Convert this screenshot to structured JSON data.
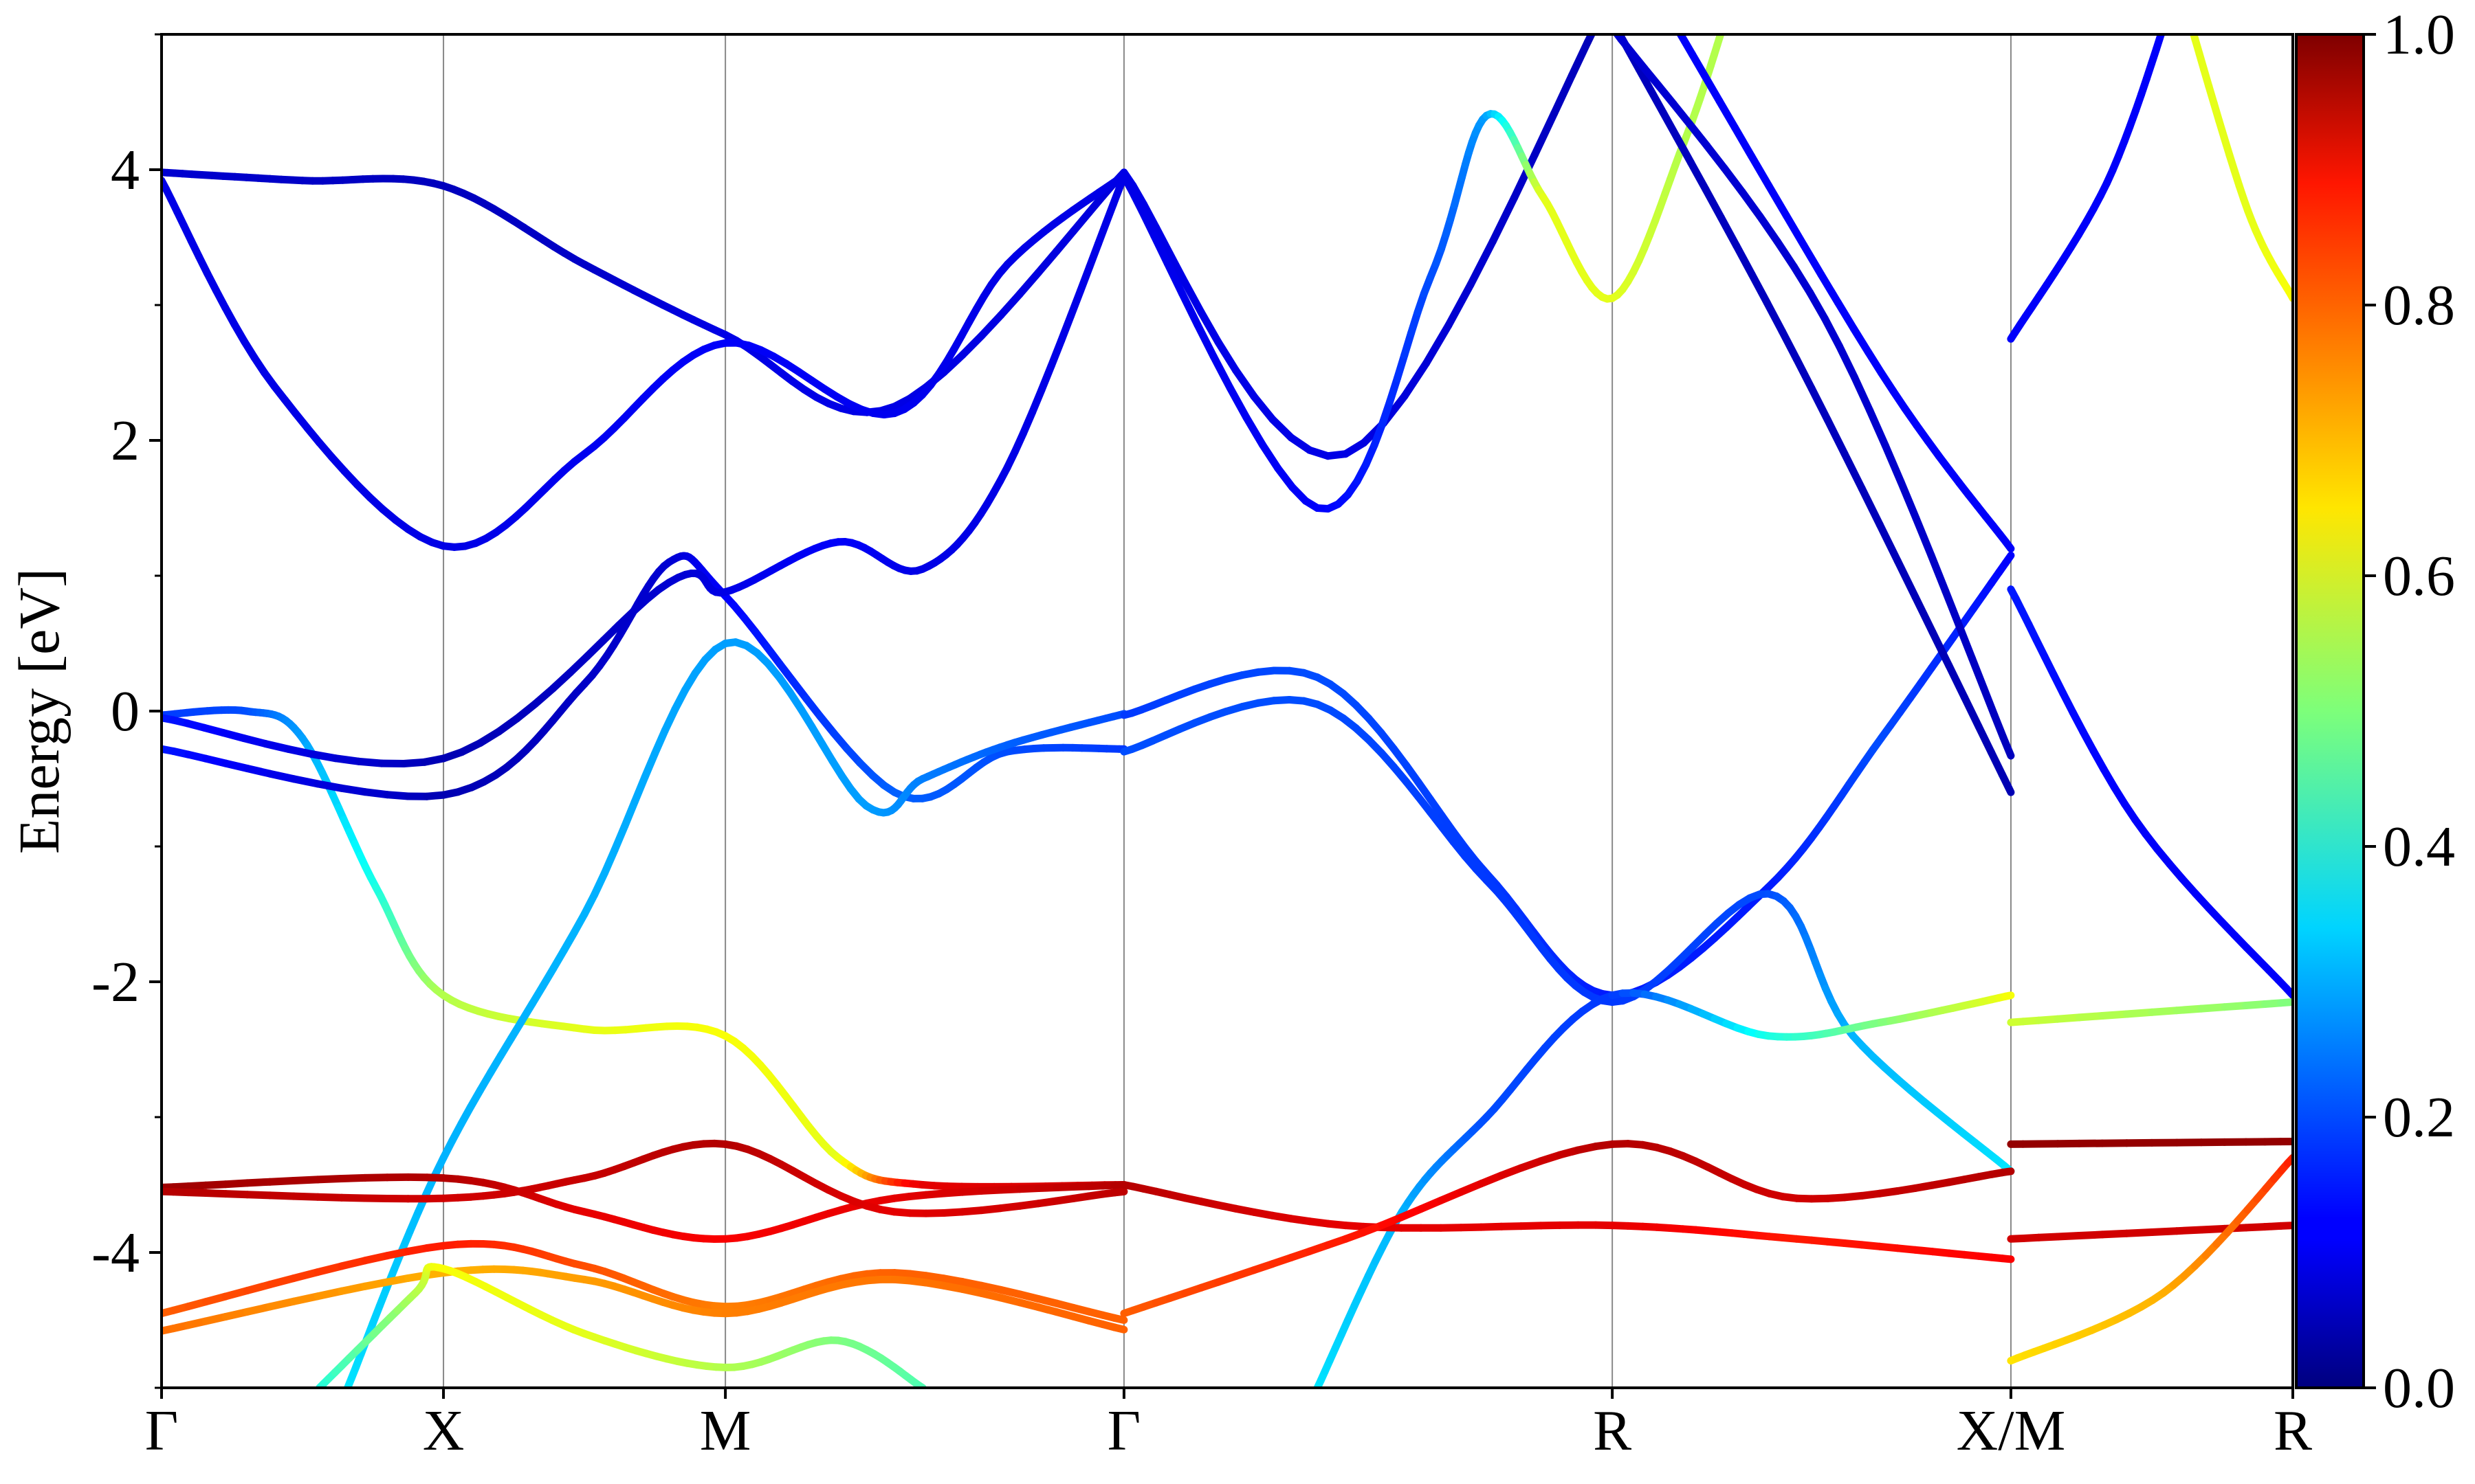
{
  "chart_data": {
    "type": "line",
    "title": "",
    "xlabel": "",
    "ylabel": "Energy [eV]",
    "ylim": [
      -5,
      5
    ],
    "yticks": [
      "-4",
      "-2",
      "0",
      "2",
      "4"
    ],
    "ytick_values": [
      -4,
      -2,
      0,
      2,
      4
    ],
    "kpath": {
      "labels": [
        "Γ",
        "X",
        "M",
        "Γ",
        "R",
        "X/M",
        "R"
      ],
      "positions": [
        0,
        0.5,
        1.0,
        1.707,
        2.573,
        3.28,
        3.78
      ]
    },
    "grid": "vertical lines at high-symmetry points",
    "colormap": "jet",
    "colorbar": {
      "min": 0.0,
      "max": 1.0,
      "ticks": [
        "0.0",
        "0.2",
        "0.4",
        "0.6",
        "0.8",
        "1.0"
      ],
      "tick_values": [
        0.0,
        0.2,
        0.4,
        0.6,
        0.8,
        1.0
      ],
      "placement": "right"
    },
    "series": [
      {
        "points": [
          [
            0,
            3.98,
            0.08
          ],
          [
            0.25,
            3.92,
            0.07
          ],
          [
            0.5,
            3.88,
            0.06
          ],
          [
            0.75,
            3.3,
            0.07
          ],
          [
            1.0,
            2.78,
            0.1
          ],
          [
            1.3,
            2.25,
            0.1
          ],
          [
            1.707,
            3.98,
            0.09
          ]
        ]
      },
      {
        "points": [
          [
            0,
            3.92,
            0.1
          ],
          [
            0.2,
            2.4,
            0.1
          ],
          [
            0.5,
            1.22,
            0.1
          ],
          [
            0.75,
            1.9,
            0.11
          ],
          [
            1.0,
            2.72,
            0.12
          ],
          [
            1.3,
            2.2,
            0.11
          ],
          [
            1.5,
            3.3,
            0.1
          ],
          [
            1.707,
            3.96,
            0.1
          ]
        ]
      },
      {
        "points": [
          [
            0,
            -0.03,
            0.18
          ],
          [
            0.15,
            0.0,
            0.2
          ],
          [
            0.25,
            -0.2,
            0.28
          ],
          [
            0.38,
            -1.3,
            0.4
          ],
          [
            0.5,
            -2.1,
            0.55
          ],
          [
            0.75,
            -2.35,
            0.6
          ],
          [
            1.0,
            -2.4,
            0.62
          ],
          [
            1.2,
            -3.3,
            0.6
          ],
          [
            1.35,
            -3.5,
            0.9
          ],
          [
            1.707,
            -3.5,
            0.92
          ]
        ]
      },
      {
        "points": [
          [
            0,
            -0.28,
            0.15
          ],
          [
            0.5,
            -0.62,
            0.05
          ],
          [
            0.75,
            0.2,
            0.07
          ],
          [
            0.9,
            1.1,
            0.08
          ],
          [
            1.0,
            0.85,
            0.12
          ],
          [
            1.3,
            -0.6,
            0.22
          ],
          [
            1.5,
            -0.3,
            0.2
          ],
          [
            1.707,
            -0.28,
            0.18
          ]
        ]
      },
      {
        "points": [
          [
            0,
            -0.05,
            0.15
          ],
          [
            0.5,
            -0.35,
            0.05
          ],
          [
            0.9,
            0.95,
            0.08
          ],
          [
            1.0,
            0.88,
            0.1
          ],
          [
            1.2,
            1.25,
            0.12
          ],
          [
            1.35,
            1.05,
            0.1
          ],
          [
            1.5,
            1.8,
            0.1
          ],
          [
            1.707,
            3.95,
            0.1
          ]
        ]
      },
      {
        "points": [
          [
            0.33,
            -5.0,
            0.35
          ],
          [
            0.5,
            -3.3,
            0.3
          ],
          [
            0.75,
            -1.5,
            0.3
          ],
          [
            1.0,
            0.5,
            0.28
          ],
          [
            1.25,
            -0.7,
            0.28
          ],
          [
            1.35,
            -0.5,
            0.25
          ],
          [
            1.5,
            -0.25,
            0.22
          ],
          [
            1.707,
            -0.02,
            0.2
          ]
        ]
      },
      {
        "points": [
          [
            0,
            -3.52,
            0.97
          ],
          [
            0.5,
            -3.45,
            0.95
          ],
          [
            0.75,
            -3.7,
            0.9
          ],
          [
            1.0,
            -3.9,
            0.88
          ],
          [
            1.3,
            -3.6,
            0.9
          ],
          [
            1.707,
            -3.5,
            0.95
          ]
        ]
      },
      {
        "points": [
          [
            0,
            -3.55,
            0.95
          ],
          [
            0.5,
            -3.6,
            0.92
          ],
          [
            0.75,
            -3.45,
            0.93
          ],
          [
            1.0,
            -3.2,
            0.95
          ],
          [
            1.3,
            -3.7,
            0.9
          ],
          [
            1.707,
            -3.55,
            0.94
          ]
        ]
      },
      {
        "points": [
          [
            0,
            -4.45,
            0.78
          ],
          [
            0.5,
            -3.95,
            0.85
          ],
          [
            0.75,
            -4.1,
            0.8
          ],
          [
            1.0,
            -4.4,
            0.75
          ],
          [
            1.3,
            -4.15,
            0.78
          ],
          [
            1.707,
            -4.5,
            0.78
          ]
        ]
      },
      {
        "points": [
          [
            0,
            -4.58,
            0.77
          ],
          [
            0.5,
            -4.15,
            0.7
          ],
          [
            0.75,
            -4.2,
            0.72
          ],
          [
            1.0,
            -4.45,
            0.75
          ],
          [
            1.3,
            -4.2,
            0.76
          ],
          [
            1.707,
            -4.57,
            0.78
          ]
        ]
      },
      {
        "points": [
          [
            0.28,
            -5.0,
            0.4
          ],
          [
            0.45,
            -4.3,
            0.55
          ],
          [
            0.5,
            -4.12,
            0.62
          ],
          [
            0.75,
            -4.6,
            0.6
          ],
          [
            1.0,
            -4.85,
            0.55
          ],
          [
            1.2,
            -4.65,
            0.5
          ],
          [
            1.35,
            -5.0,
            0.45
          ]
        ]
      },
      {
        "points": [
          [
            1.707,
            3.98,
            0.1
          ],
          [
            2.1,
            1.9,
            0.1
          ],
          [
            2.573,
            5.3,
            0.05
          ]
        ]
      },
      {
        "points": [
          [
            1.707,
            3.95,
            0.1
          ],
          [
            2.05,
            1.5,
            0.12
          ],
          [
            2.25,
            3.2,
            0.2
          ],
          [
            2.35,
            4.4,
            0.28
          ],
          [
            2.45,
            3.8,
            0.6
          ],
          [
            2.573,
            3.05,
            0.6
          ],
          [
            2.7,
            4.2,
            0.55
          ],
          [
            2.78,
            5.2,
            0.55
          ]
        ]
      },
      {
        "points": [
          [
            1.707,
            -0.03,
            0.18
          ],
          [
            2.05,
            0.25,
            0.2
          ],
          [
            2.35,
            -1.2,
            0.18
          ],
          [
            2.573,
            -2.1,
            0.15
          ],
          [
            2.85,
            -1.3,
            0.15
          ],
          [
            3.05,
            -0.2,
            0.2
          ],
          [
            3.28,
            1.15,
            0.12
          ]
        ]
      },
      {
        "points": [
          [
            1.707,
            -0.3,
            0.2
          ],
          [
            2.05,
            0.05,
            0.2
          ],
          [
            2.35,
            -1.25,
            0.18
          ],
          [
            2.573,
            -2.15,
            0.18
          ],
          [
            2.85,
            -1.35,
            0.2
          ],
          [
            3.0,
            -2.4,
            0.3
          ],
          [
            3.28,
            -3.4,
            0.35
          ]
        ]
      },
      {
        "points": [
          [
            2.05,
            -5.0,
            0.35
          ],
          [
            2.2,
            -3.7,
            0.3
          ],
          [
            2.35,
            -3.0,
            0.2
          ],
          [
            2.573,
            -2.1,
            0.18
          ],
          [
            2.85,
            -2.4,
            0.4
          ],
          [
            3.05,
            -2.3,
            0.5
          ],
          [
            3.28,
            -2.1,
            0.62
          ]
        ]
      },
      {
        "points": [
          [
            1.707,
            -3.5,
            0.95
          ],
          [
            2.1,
            -3.8,
            0.9
          ],
          [
            2.573,
            -3.8,
            0.9
          ],
          [
            2.9,
            -3.9,
            0.85
          ],
          [
            3.28,
            -4.05,
            0.88
          ]
        ]
      },
      {
        "points": [
          [
            1.707,
            -4.45,
            0.78
          ],
          [
            2.1,
            -3.9,
            0.85
          ],
          [
            2.573,
            -3.2,
            0.95
          ],
          [
            2.9,
            -3.6,
            0.92
          ],
          [
            3.28,
            -3.4,
            0.95
          ]
        ]
      },
      {
        "points": [
          [
            2.573,
            5.1,
            0.06
          ],
          [
            2.9,
            2.6,
            0.06
          ],
          [
            3.28,
            -0.6,
            0.05
          ]
        ]
      },
      {
        "points": [
          [
            2.573,
            5.05,
            0.08
          ],
          [
            2.95,
            2.9,
            0.08
          ],
          [
            3.28,
            -0.33,
            0.06
          ]
        ]
      },
      {
        "points": [
          [
            2.68,
            5.1,
            0.12
          ],
          [
            3.05,
            2.5,
            0.12
          ],
          [
            3.28,
            1.2,
            0.12
          ]
        ]
      },
      {
        "points": [
          [
            3.28,
            2.75,
            0.12
          ],
          [
            3.45,
            3.9,
            0.12
          ],
          [
            3.57,
            5.3,
            0.12
          ]
        ]
      },
      {
        "points": [
          [
            3.28,
            0.9,
            0.15
          ],
          [
            3.5,
            -0.8,
            0.12
          ],
          [
            3.78,
            -2.1,
            0.12
          ]
        ]
      },
      {
        "points": [
          [
            3.28,
            -2.3,
            0.58
          ],
          [
            3.78,
            -2.15,
            0.5
          ]
        ]
      },
      {
        "points": [
          [
            3.28,
            -3.2,
            0.98
          ],
          [
            3.78,
            -3.18,
            0.98
          ]
        ]
      },
      {
        "points": [
          [
            3.28,
            -3.9,
            0.92
          ],
          [
            3.78,
            -3.8,
            0.92
          ]
        ]
      },
      {
        "points": [
          [
            3.28,
            -4.8,
            0.65
          ],
          [
            3.55,
            -4.3,
            0.7
          ],
          [
            3.78,
            -3.3,
            0.85
          ]
        ]
      },
      {
        "points": [
          [
            3.59,
            5.2,
            0.6
          ],
          [
            3.7,
            3.7,
            0.6
          ],
          [
            3.78,
            3.05,
            0.62
          ]
        ]
      }
    ]
  }
}
